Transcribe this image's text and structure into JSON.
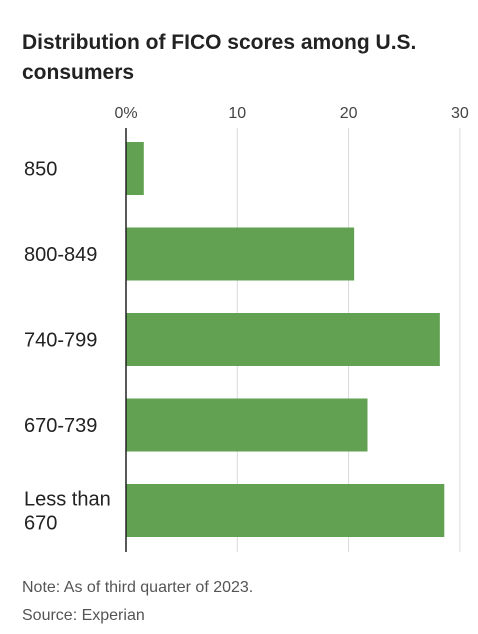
{
  "chart_data": {
    "type": "bar",
    "orientation": "horizontal",
    "title": "Distribution of FICO scores among U.S. consumers",
    "categories": [
      "850",
      "800-849",
      "740-799",
      "670-739",
      "Less than 670"
    ],
    "category_lines": [
      [
        "850"
      ],
      [
        "800-849"
      ],
      [
        "740-799"
      ],
      [
        "670-739"
      ],
      [
        "Less than",
        "670"
      ]
    ],
    "values": [
      1.6,
      20.5,
      28.2,
      21.7,
      28.6
    ],
    "xlim": [
      0,
      30
    ],
    "ticks": [
      0,
      10,
      20,
      30
    ],
    "tick_labels": [
      "0%",
      "10",
      "20",
      "30"
    ],
    "xaxis_position": "top",
    "grid": true,
    "legend": "none",
    "colors": {
      "bar": "#62a052",
      "grid": "#d9d9d9",
      "axis": "#222222"
    }
  },
  "notes": {
    "note": "Note: As of third quarter of 2023.",
    "source": "Source: Experian"
  }
}
